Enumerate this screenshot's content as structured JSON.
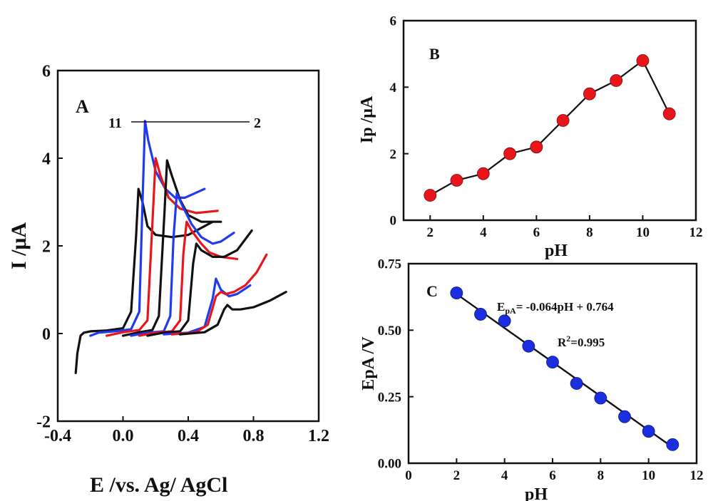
{
  "colors": {
    "black": "#111111",
    "red": "#e8161b",
    "blue": "#1f3bf0",
    "marker_red": "#e8161b",
    "marker_blue": "#1c2fe0"
  },
  "chart_data": [
    {
      "panel": "A",
      "type": "line",
      "xlabel": "E /vs. Ag/ AgCl",
      "ylabel": "I /μA",
      "xlim": [
        -0.4,
        1.2
      ],
      "ylim": [
        -2,
        6
      ],
      "xticks": [
        "-0.4",
        "0.0",
        "0.4",
        "0.8",
        "1.2"
      ],
      "yticks": [
        "-2",
        "0",
        "2",
        "4",
        "6"
      ],
      "annotation": {
        "left": "11",
        "right": "2"
      },
      "series": [
        {
          "color": "black",
          "points": [
            [
              -0.29,
              -0.9
            ],
            [
              -0.28,
              -0.45
            ],
            [
              -0.26,
              -0.05
            ],
            [
              -0.24,
              0.02
            ],
            [
              -0.2,
              0.05
            ],
            [
              -0.1,
              0.07
            ],
            [
              0.0,
              0.12
            ],
            [
              0.05,
              0.5
            ],
            [
              0.08,
              2.2
            ],
            [
              0.095,
              3.3
            ],
            [
              0.12,
              3.0
            ],
            [
              0.15,
              2.45
            ],
            [
              0.2,
              2.25
            ],
            [
              0.3,
              2.2
            ],
            [
              0.4,
              2.25
            ],
            [
              0.55,
              2.55
            ]
          ]
        },
        {
          "color": "blue",
          "points": [
            [
              -0.2,
              -0.05
            ],
            [
              -0.15,
              0.02
            ],
            [
              -0.05,
              0.05
            ],
            [
              0.05,
              0.1
            ],
            [
              0.1,
              0.5
            ],
            [
              0.12,
              3.0
            ],
            [
              0.135,
              4.85
            ],
            [
              0.155,
              4.4
            ],
            [
              0.2,
              3.7
            ],
            [
              0.26,
              3.3
            ],
            [
              0.32,
              3.1
            ],
            [
              0.38,
              3.1
            ],
            [
              0.5,
              3.3
            ]
          ]
        },
        {
          "color": "red",
          "points": [
            [
              -0.1,
              -0.05
            ],
            [
              0.0,
              0.03
            ],
            [
              0.1,
              0.08
            ],
            [
              0.15,
              0.3
            ],
            [
              0.18,
              2.5
            ],
            [
              0.2,
              4.0
            ],
            [
              0.23,
              3.6
            ],
            [
              0.28,
              3.1
            ],
            [
              0.35,
              2.85
            ],
            [
              0.45,
              2.75
            ],
            [
              0.58,
              2.8
            ]
          ]
        },
        {
          "color": "black",
          "points": [
            [
              0.0,
              -0.05
            ],
            [
              0.1,
              0.03
            ],
            [
              0.18,
              0.08
            ],
            [
              0.22,
              0.4
            ],
            [
              0.255,
              2.8
            ],
            [
              0.27,
              3.95
            ],
            [
              0.3,
              3.6
            ],
            [
              0.35,
              3.05
            ],
            [
              0.4,
              2.7
            ],
            [
              0.48,
              2.55
            ],
            [
              0.6,
              2.55
            ]
          ]
        },
        {
          "color": "blue",
          "points": [
            [
              0.05,
              -0.05
            ],
            [
              0.15,
              0.02
            ],
            [
              0.25,
              0.05
            ],
            [
              0.29,
              0.4
            ],
            [
              0.31,
              2.2
            ],
            [
              0.33,
              3.2
            ],
            [
              0.36,
              2.95
            ],
            [
              0.42,
              2.5
            ],
            [
              0.48,
              2.2
            ],
            [
              0.55,
              2.05
            ],
            [
              0.6,
              2.1
            ],
            [
              0.68,
              2.3
            ]
          ]
        },
        {
          "color": "red",
          "points": [
            [
              0.1,
              -0.05
            ],
            [
              0.2,
              0.02
            ],
            [
              0.3,
              0.05
            ],
            [
              0.35,
              0.3
            ],
            [
              0.37,
              1.8
            ],
            [
              0.39,
              2.55
            ],
            [
              0.42,
              2.35
            ],
            [
              0.48,
              2.05
            ],
            [
              0.53,
              1.85
            ],
            [
              0.6,
              1.75
            ],
            [
              0.7,
              1.7
            ]
          ]
        },
        {
          "color": "black",
          "points": [
            [
              0.15,
              -0.05
            ],
            [
              0.25,
              0.02
            ],
            [
              0.35,
              0.05
            ],
            [
              0.4,
              0.3
            ],
            [
              0.43,
              1.6
            ],
            [
              0.45,
              2.05
            ],
            [
              0.48,
              1.9
            ],
            [
              0.55,
              1.75
            ],
            [
              0.62,
              1.75
            ],
            [
              0.7,
              1.9
            ],
            [
              0.79,
              2.35
            ]
          ]
        },
        {
          "color": "blue",
          "points": [
            [
              0.25,
              -0.02
            ],
            [
              0.4,
              0.02
            ],
            [
              0.5,
              0.15
            ],
            [
              0.55,
              0.8
            ],
            [
              0.57,
              1.25
            ],
            [
              0.6,
              1.0
            ],
            [
              0.65,
              0.85
            ],
            [
              0.7,
              0.9
            ],
            [
              0.78,
              1.1
            ]
          ]
        },
        {
          "color": "red",
          "points": [
            [
              0.3,
              -0.02
            ],
            [
              0.45,
              0.03
            ],
            [
              0.52,
              0.2
            ],
            [
              0.57,
              0.85
            ],
            [
              0.6,
              0.95
            ],
            [
              0.63,
              0.9
            ],
            [
              0.68,
              0.95
            ],
            [
              0.75,
              1.1
            ],
            [
              0.82,
              1.4
            ],
            [
              0.88,
              1.8
            ]
          ]
        },
        {
          "color": "black",
          "points": [
            [
              0.35,
              -0.02
            ],
            [
              0.5,
              0.03
            ],
            [
              0.58,
              0.2
            ],
            [
              0.62,
              0.55
            ],
            [
              0.64,
              0.65
            ],
            [
              0.67,
              0.55
            ],
            [
              0.72,
              0.55
            ],
            [
              0.8,
              0.6
            ],
            [
              0.9,
              0.75
            ],
            [
              1.0,
              0.95
            ]
          ]
        }
      ]
    },
    {
      "panel": "B",
      "type": "line",
      "xlabel": "pH",
      "ylabel": "Ip /μA",
      "xlim": [
        1,
        12
      ],
      "ylim": [
        0,
        6
      ],
      "xticks": [
        "2",
        "4",
        "6",
        "8",
        "10",
        "12"
      ],
      "yticks": [
        "0",
        "2",
        "4",
        "6"
      ],
      "x": [
        2,
        3,
        4,
        5,
        6,
        7,
        8,
        9,
        10,
        11
      ],
      "values": [
        0.75,
        1.2,
        1.4,
        2.0,
        2.2,
        3.0,
        3.8,
        4.2,
        4.8,
        3.2
      ]
    },
    {
      "panel": "C",
      "type": "scatter",
      "xlabel": "pH",
      "ylabel": "EpA /V",
      "xlim": [
        0,
        12
      ],
      "ylim": [
        0,
        0.75
      ],
      "xticks": [
        "0",
        "2",
        "4",
        "6",
        "8",
        "10",
        "12"
      ],
      "yticks": [
        "0.00",
        "0.25",
        "0.50",
        "0.75"
      ],
      "x": [
        2,
        3,
        4,
        5,
        6,
        7,
        8,
        9,
        10,
        11
      ],
      "values": [
        0.64,
        0.56,
        0.535,
        0.44,
        0.38,
        0.3,
        0.245,
        0.175,
        0.12,
        0.07
      ],
      "fit": {
        "x": [
          2,
          11
        ],
        "y": [
          0.636,
          0.06
        ]
      },
      "equation": {
        "main": "E",
        "sub": "pA",
        "rest": "= -0.064pH + 0.764"
      },
      "r2": {
        "base": "R",
        "sup": "2",
        "rest": "=0.995"
      }
    }
  ]
}
